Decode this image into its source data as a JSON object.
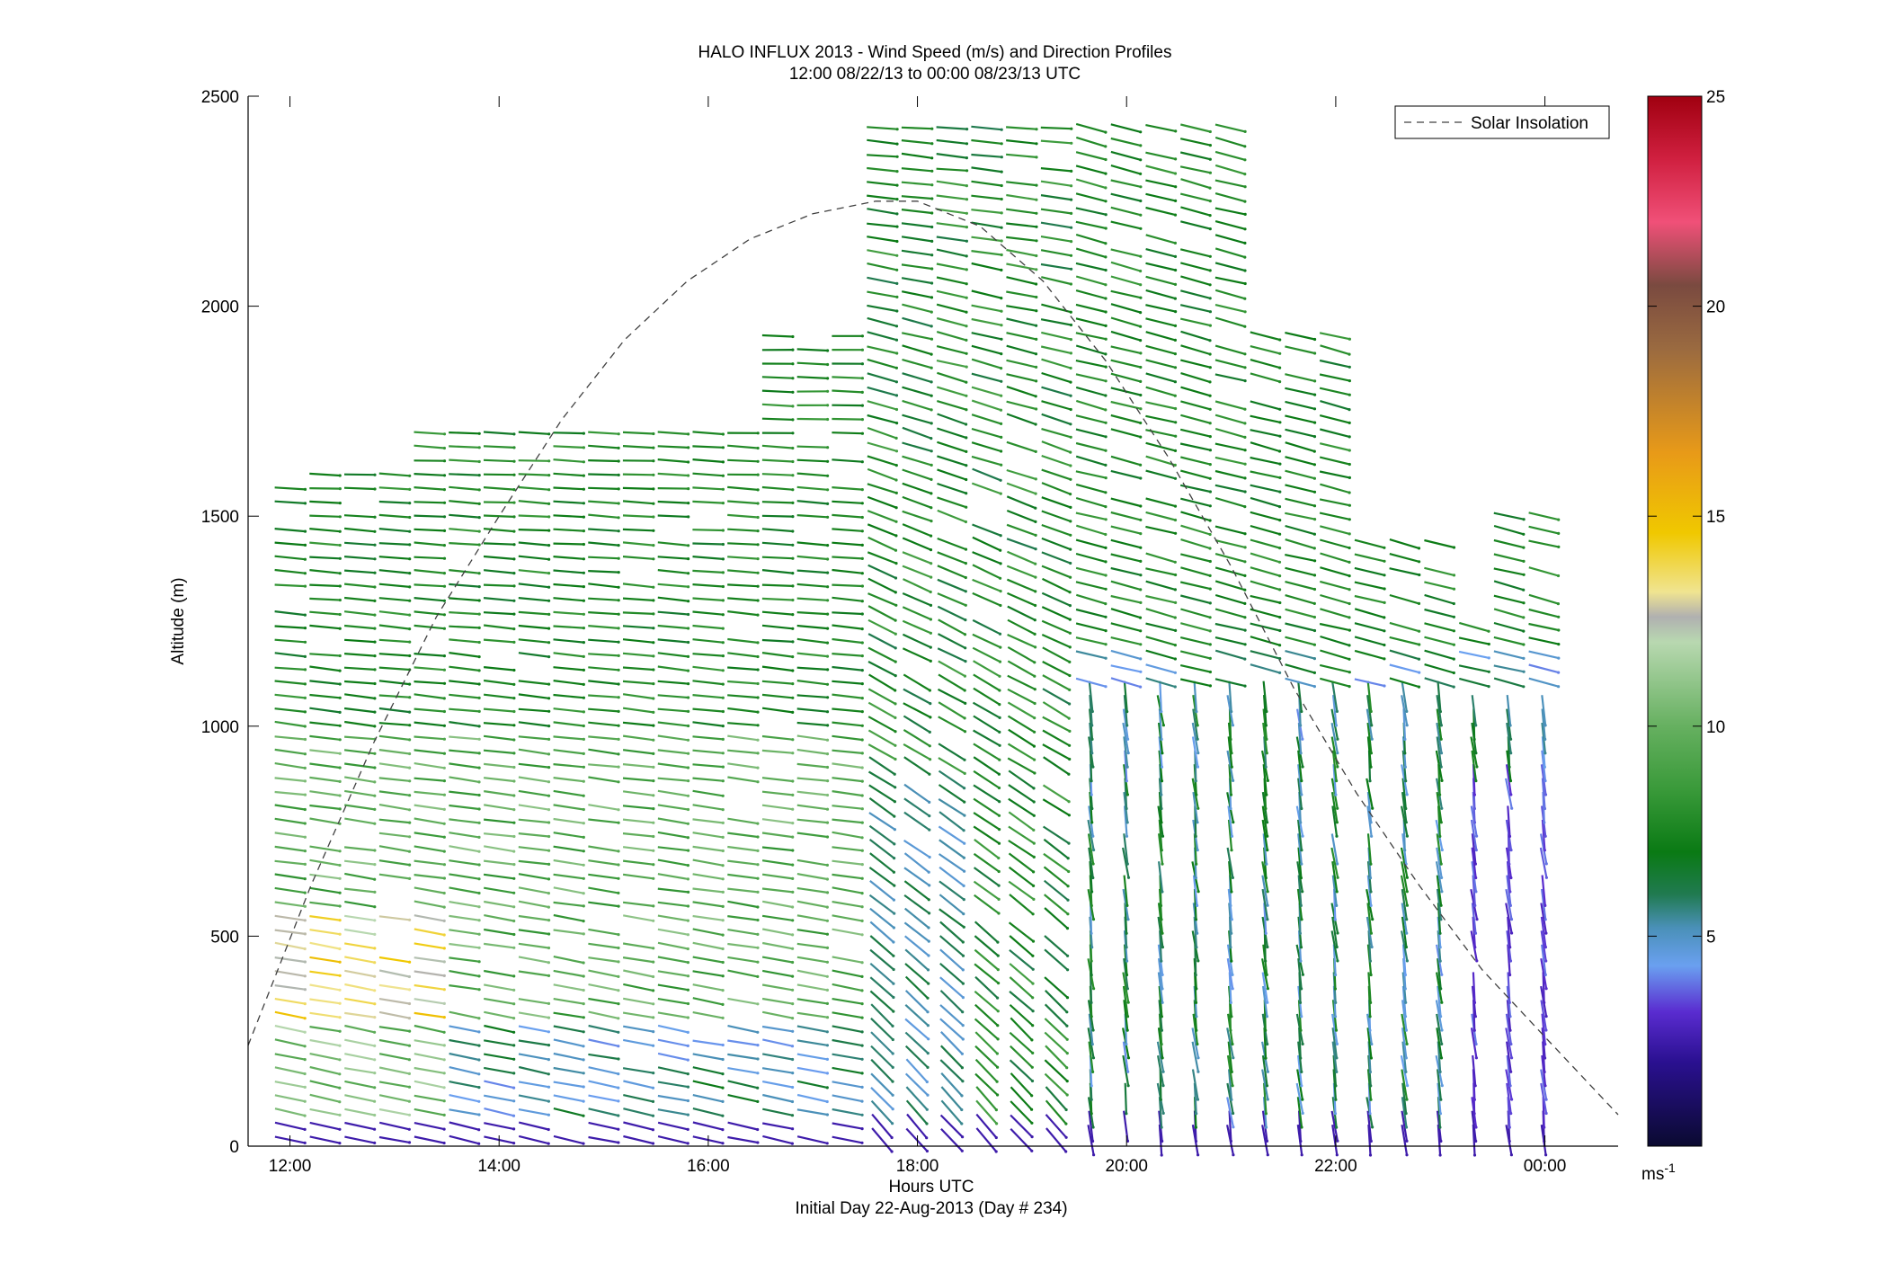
{
  "chart_data": {
    "type": "scatter",
    "title": "HALO INFLUX 2013 - Wind Speed (m/s) and Direction Profiles",
    "subtitle": "12:00 08/22/13 to 00:00 08/23/13  UTC",
    "xlabel": "Hours UTC",
    "xlabel2": "Initial Day 22-Aug-2013 (Day # 234)",
    "ylabel": "Altitude (m)",
    "xlim": [
      11.6,
      24.7
    ],
    "ylim": [
      0,
      2500
    ],
    "x_ticks": [
      12,
      14,
      16,
      18,
      20,
      22,
      24
    ],
    "x_tick_labels": [
      "12:00",
      "14:00",
      "16:00",
      "18:00",
      "20:00",
      "22:00",
      "00:00"
    ],
    "y_ticks": [
      0,
      500,
      1000,
      1500,
      2000,
      2500
    ],
    "y_tick_labels": [
      "0",
      "500",
      "1000",
      "1500",
      "2000",
      "2500"
    ],
    "legend": {
      "entries": [
        "Solar Insolation"
      ],
      "placement": "top-right"
    },
    "colorbar": {
      "range": [
        0,
        25
      ],
      "ticks": [
        5,
        10,
        15,
        20,
        25
      ],
      "tick_labels": [
        "5",
        "10",
        "15",
        "20",
        "25"
      ],
      "unit_label": "ms-1",
      "stops": [
        {
          "v": 0,
          "c": "#0a0a30"
        },
        {
          "v": 2,
          "c": "#2a1090"
        },
        {
          "v": 3.2,
          "c": "#5a2cd0"
        },
        {
          "v": 4.3,
          "c": "#6aa0f0"
        },
        {
          "v": 5.2,
          "c": "#4a90b8"
        },
        {
          "v": 6,
          "c": "#207a50"
        },
        {
          "v": 7,
          "c": "#0a7a14"
        },
        {
          "v": 8.5,
          "c": "#3a9a3a"
        },
        {
          "v": 10,
          "c": "#66b060"
        },
        {
          "v": 12,
          "c": "#b8d8b0"
        },
        {
          "v": 12.6,
          "c": "#b0b0b0"
        },
        {
          "v": 13.2,
          "c": "#f0e490"
        },
        {
          "v": 14.6,
          "c": "#f0c800"
        },
        {
          "v": 16.5,
          "c": "#e89a18"
        },
        {
          "v": 19,
          "c": "#9a6a40"
        },
        {
          "v": 20.5,
          "c": "#7a4a40"
        },
        {
          "v": 22,
          "c": "#f05078"
        },
        {
          "v": 23.5,
          "c": "#d02040"
        },
        {
          "v": 25,
          "c": "#a00010"
        }
      ]
    },
    "series": [
      {
        "name": "Solar Insolation",
        "style": "dashed",
        "color": "#404040",
        "x": [
          11.6,
          12.2,
          12.8,
          13.4,
          14.0,
          14.6,
          15.2,
          15.8,
          16.4,
          17.0,
          17.6,
          18.0,
          18.6,
          19.2,
          19.8,
          20.4,
          21.0,
          21.6,
          22.2,
          22.8,
          23.4,
          24.0,
          24.7
        ],
        "y": [
          240,
          620,
          960,
          1260,
          1500,
          1730,
          1920,
          2060,
          2160,
          2220,
          2250,
          2250,
          2190,
          2060,
          1870,
          1640,
          1380,
          1090,
          840,
          620,
          420,
          260,
          75
        ]
      }
    ],
    "wind_barbs_summary": {
      "profile_times": "approximately every 20 minutes from 12:00 to 00:10 UTC",
      "levels": "every ~30 m from surface to the top of detectable signal (1200–2500 m)",
      "speed_colors": "speeds mostly 5–12 m/s (greens), 2–5 m/s (purples/blues) near surface and after 20:00, up to ~15 m/s (yellow) near 12:00–13:00 around 300–500 m",
      "direction": "mostly westerly/southwesterly aloft, turning to northerly after 19:00 in the lower layers"
    }
  }
}
